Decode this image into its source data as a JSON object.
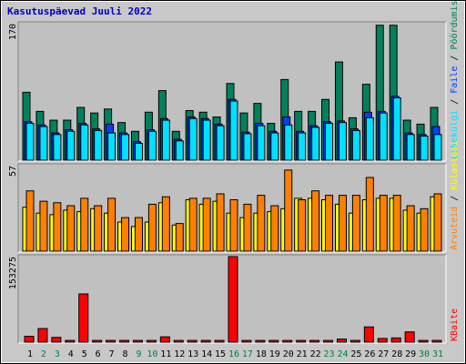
{
  "title": "Kasutuspäevad Juuli 2022",
  "legend_separator": " / ",
  "chart_data": [
    {
      "type": "bar",
      "ylim": [
        0,
        170
      ],
      "yticks": [
        170
      ],
      "series": [
        {
          "name": "Pöördumisi",
          "color": "#00805c",
          "values": [
            84,
            60,
            49,
            49,
            65,
            58,
            63,
            46,
            35,
            59,
            86,
            35,
            61,
            59,
            53,
            95,
            58,
            70,
            45,
            100,
            60,
            60,
            75,
            122,
            52,
            94,
            168,
            168,
            49,
            44,
            65
          ]
        },
        {
          "name": "Faile",
          "color": "#0040ff",
          "values": [
            47,
            43,
            33,
            37,
            45,
            38,
            44,
            33,
            22,
            37,
            51,
            25,
            53,
            51,
            44,
            75,
            34,
            45,
            35,
            53,
            35,
            42,
            47,
            48,
            38,
            59,
            60,
            79,
            33,
            31,
            41
          ]
        },
        {
          "name": "Lehekülgi",
          "color": "#00e0ff",
          "values": [
            45,
            41,
            31,
            35,
            43,
            36,
            33,
            31,
            20,
            35,
            49,
            23,
            51,
            49,
            42,
            73,
            32,
            42,
            33,
            43,
            33,
            40,
            45,
            46,
            36,
            52,
            58,
            77,
            31,
            29,
            31
          ]
        }
      ]
    },
    {
      "type": "bar",
      "ylim": [
        0,
        57
      ],
      "yticks": [
        57
      ],
      "series": [
        {
          "name": "Külastusi",
          "color": "#ffff00",
          "values": [
            29,
            25,
            24,
            27,
            26,
            28,
            25,
            19,
            16,
            19,
            32,
            17,
            34,
            31,
            33,
            25,
            22,
            25,
            26,
            28,
            35,
            35,
            34,
            31,
            25,
            34,
            35,
            35,
            27,
            25,
            36
          ]
        },
        {
          "name": "Arvuteid",
          "color": "#ff8000",
          "values": [
            40,
            33,
            32,
            30,
            35,
            30,
            35,
            22,
            22,
            31,
            36,
            18,
            35,
            35,
            38,
            34,
            31,
            37,
            30,
            54,
            34,
            40,
            37,
            37,
            37,
            49,
            37,
            37,
            30,
            28,
            38
          ]
        }
      ]
    },
    {
      "type": "bar",
      "ylim": [
        0,
        153275
      ],
      "yticks": [
        153275
      ],
      "categories": [
        "1",
        "2",
        "3",
        "4",
        "5",
        "6",
        "7",
        "8",
        "9",
        "10",
        "11",
        "12",
        "13",
        "14",
        "15",
        "16",
        "17",
        "18",
        "19",
        "20",
        "21",
        "22",
        "23",
        "24",
        "25",
        "26",
        "27",
        "28",
        "29",
        "30",
        "31"
      ],
      "category_colors": [
        "#000000",
        "#008040",
        "#008040",
        "#000000",
        "#000000",
        "#000000",
        "#000000",
        "#000000",
        "#008040",
        "#008040",
        "#000000",
        "#000000",
        "#000000",
        "#000000",
        "#000000",
        "#008040",
        "#008040",
        "#000000",
        "#000000",
        "#000000",
        "#000000",
        "#000000",
        "#008040",
        "#008040",
        "#000000",
        "#000000",
        "#000000",
        "#000000",
        "#000000",
        "#008040",
        "#008040"
      ],
      "series": [
        {
          "name": "KBaite",
          "color": "#ff0000",
          "values": [
            9000,
            23000,
            7000,
            1500,
            85700,
            1500,
            1500,
            1500,
            1500,
            1500,
            8000,
            1500,
            1500,
            1500,
            1500,
            153275,
            1500,
            1500,
            1500,
            1500,
            1500,
            1500,
            1500,
            4000,
            1500,
            26000,
            5000,
            6000,
            17000,
            1500,
            1500
          ]
        }
      ]
    }
  ]
}
